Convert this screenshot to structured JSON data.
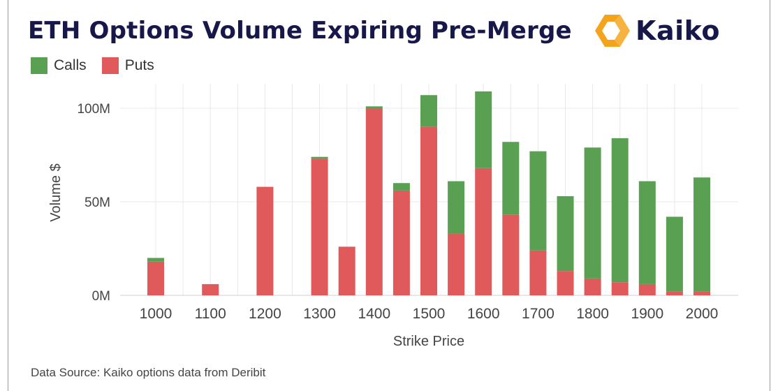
{
  "header": {
    "title": "ETH Options Volume Expiring Pre-Merge",
    "brand": "Kaiko"
  },
  "footer": {
    "source": "Data Source: Kaiko options data from Deribit"
  },
  "colors": {
    "calls": "#5aa052",
    "puts": "#e05a5c",
    "grid": "#e8e8e8",
    "title": "#17174a",
    "logo_orange": "#f5a31a"
  },
  "chart_data": {
    "type": "bar",
    "stacked": true,
    "xlabel": "Strike Price",
    "ylabel": "Volume $",
    "ylim": [
      0,
      108
    ],
    "y_ticks": [
      {
        "value": 0,
        "label": "0M"
      },
      {
        "value": 50,
        "label": "50M"
      },
      {
        "value": 100,
        "label": "100M"
      }
    ],
    "categories": [
      "1000",
      "1050",
      "1100",
      "1150",
      "1200",
      "1250",
      "1300",
      "1350",
      "1400",
      "1450",
      "1500",
      "1550",
      "1600",
      "1650",
      "1700",
      "1750",
      "1800",
      "1850",
      "1900",
      "1950",
      "2000"
    ],
    "x_tick_labels": [
      "1000",
      "1100",
      "1200",
      "1300",
      "1400",
      "1500",
      "1600",
      "1700",
      "1800",
      "1900",
      "2000"
    ],
    "legend_position": "top-left",
    "grid": true,
    "series": [
      {
        "name": "Puts",
        "values": [
          18,
          0,
          6,
          0,
          58,
          0,
          73,
          26,
          100,
          56,
          90,
          33,
          68,
          43,
          24,
          13,
          9,
          7,
          6,
          2,
          2
        ]
      },
      {
        "name": "Calls",
        "values": [
          2,
          0,
          0,
          0,
          0,
          0,
          1,
          0,
          1,
          4,
          17,
          28,
          41,
          39,
          53,
          40,
          70,
          77,
          55,
          40,
          61
        ]
      }
    ]
  }
}
